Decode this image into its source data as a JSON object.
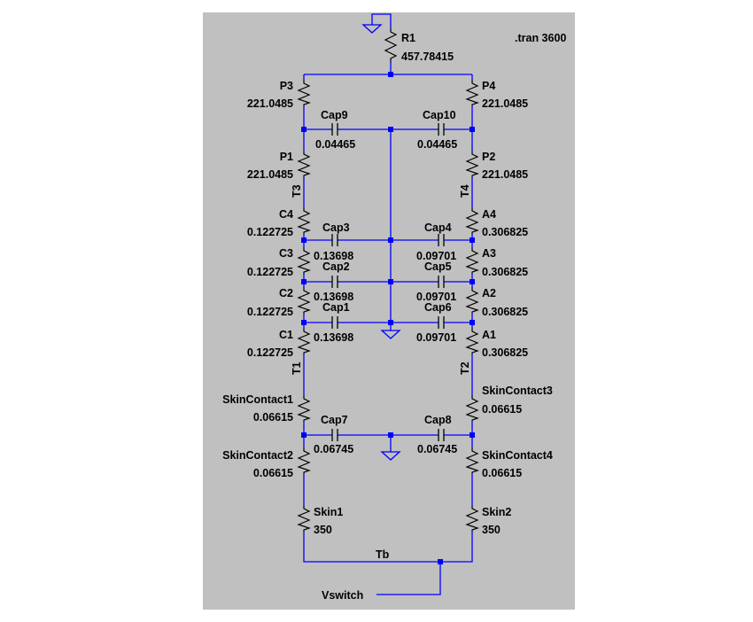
{
  "colors": {
    "background": "#c0c0c0",
    "wire": "#0000ff",
    "component": "#000000",
    "label_text": "#000000",
    "page": "#ffffff"
  },
  "directive": ".tran 3600",
  "resistors": [
    {
      "name": "R1",
      "value": "457.78415"
    },
    {
      "name": "P3",
      "value": "221.0485"
    },
    {
      "name": "P4",
      "value": "221.0485"
    },
    {
      "name": "P1",
      "value": "221.0485"
    },
    {
      "name": "P2",
      "value": "221.0485"
    },
    {
      "name": "C4",
      "value": "0.122725"
    },
    {
      "name": "C3",
      "value": "0.122725"
    },
    {
      "name": "C2",
      "value": "0.122725"
    },
    {
      "name": "C1",
      "value": "0.122725"
    },
    {
      "name": "A4",
      "value": "0.306825"
    },
    {
      "name": "A3",
      "value": "0.306825"
    },
    {
      "name": "A2",
      "value": "0.306825"
    },
    {
      "name": "A1",
      "value": "0.306825"
    },
    {
      "name": "SkinContact1",
      "value": "0.06615"
    },
    {
      "name": "SkinContact2",
      "value": "0.06615"
    },
    {
      "name": "SkinContact3",
      "value": "0.06615"
    },
    {
      "name": "SkinContact4",
      "value": "0.06615"
    },
    {
      "name": "Skin1",
      "value": "350"
    },
    {
      "name": "Skin2",
      "value": "350"
    }
  ],
  "capacitors": [
    {
      "name": "Cap9",
      "value": "0.04465"
    },
    {
      "name": "Cap10",
      "value": "0.04465"
    },
    {
      "name": "Cap3",
      "value": "0.13698"
    },
    {
      "name": "Cap4",
      "value": "0.09701"
    },
    {
      "name": "Cap2",
      "value": "0.13698"
    },
    {
      "name": "Cap5",
      "value": "0.09701"
    },
    {
      "name": "Cap1",
      "value": "0.13698"
    },
    {
      "name": "Cap6",
      "value": "0.09701"
    },
    {
      "name": "Cap7",
      "value": "0.06745"
    },
    {
      "name": "Cap8",
      "value": "0.06745"
    }
  ],
  "net_labels": [
    "T3",
    "T4",
    "T1",
    "T2",
    "Tb",
    "Vswitch"
  ]
}
